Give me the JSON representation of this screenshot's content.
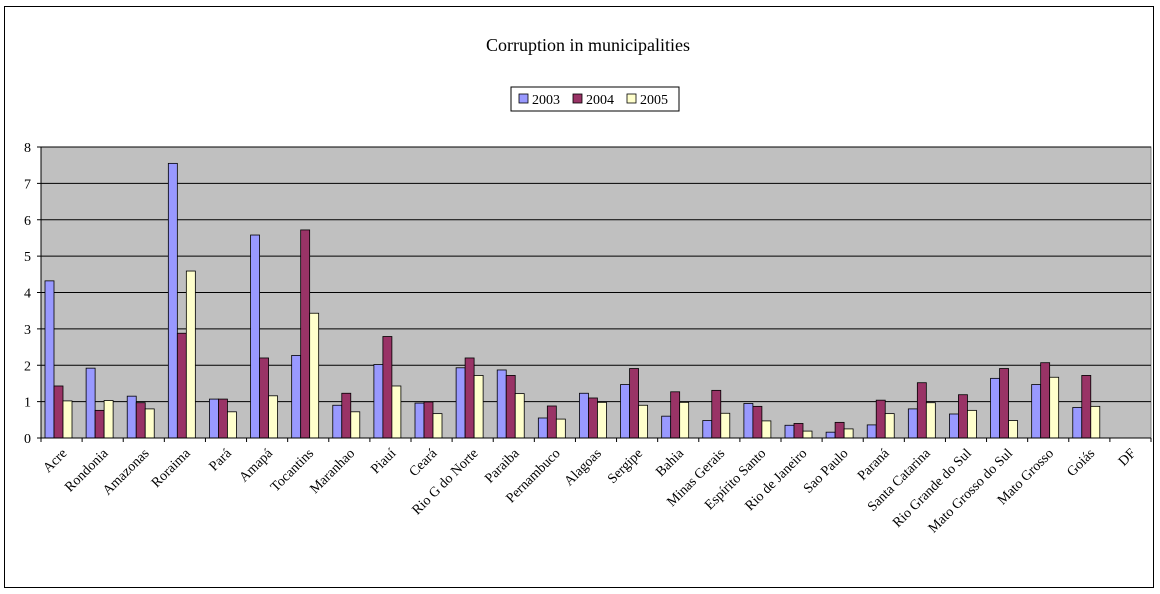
{
  "chart_data": {
    "type": "bar",
    "title": "Corruption in municipalities",
    "xlabel": "",
    "ylabel": "",
    "ylim": [
      0,
      8
    ],
    "yticks": [
      0,
      1,
      2,
      3,
      4,
      5,
      6,
      7,
      8
    ],
    "grid": true,
    "legend_position": "top-center",
    "categories": [
      "Acre",
      "Rondonia",
      "Amazonas",
      "Roraima",
      "Pará",
      "Amapá",
      "Tocantins",
      "Maranhao",
      "Piauí",
      "Ceará",
      "Rio G do Norte",
      "Paraiba",
      "Pernambuco",
      "Alagoas",
      "Sergipe",
      "Bahia",
      "Minas Gerais",
      "Espírito Santo",
      "Rio de Janeiro",
      "Sao Paulo",
      "Paraná",
      "Santa Catarina",
      "Rio Grande do Sul",
      "Mato Grosso do Sul",
      "Mato Grosso",
      "Goiás",
      "DF"
    ],
    "series": [
      {
        "name": "2003",
        "color": "#9999FF",
        "values": [
          4.32,
          1.92,
          1.15,
          7.55,
          1.07,
          5.58,
          2.27,
          0.9,
          2.02,
          0.96,
          1.93,
          1.87,
          0.55,
          1.23,
          1.47,
          0.6,
          0.48,
          0.95,
          0.35,
          0.16,
          0.36,
          0.8,
          0.66,
          1.64,
          1.47,
          0.84,
          null
        ]
      },
      {
        "name": "2004",
        "color": "#993366",
        "values": [
          1.43,
          0.76,
          0.97,
          2.88,
          1.07,
          2.2,
          5.72,
          1.23,
          2.79,
          0.99,
          2.2,
          1.72,
          0.88,
          1.1,
          1.91,
          1.27,
          1.31,
          0.87,
          0.4,
          0.43,
          1.04,
          1.52,
          1.19,
          1.91,
          2.07,
          1.72,
          null
        ]
      },
      {
        "name": "2005",
        "color": "#FFFFCC",
        "values": [
          1.02,
          1.03,
          0.8,
          4.59,
          0.72,
          1.16,
          3.43,
          0.72,
          1.43,
          0.67,
          1.72,
          1.22,
          0.52,
          0.98,
          0.9,
          0.98,
          0.68,
          0.47,
          0.19,
          0.25,
          0.67,
          0.97,
          0.76,
          0.48,
          1.67,
          0.87,
          null
        ]
      }
    ],
    "plot_background": "#C0C0C0"
  }
}
